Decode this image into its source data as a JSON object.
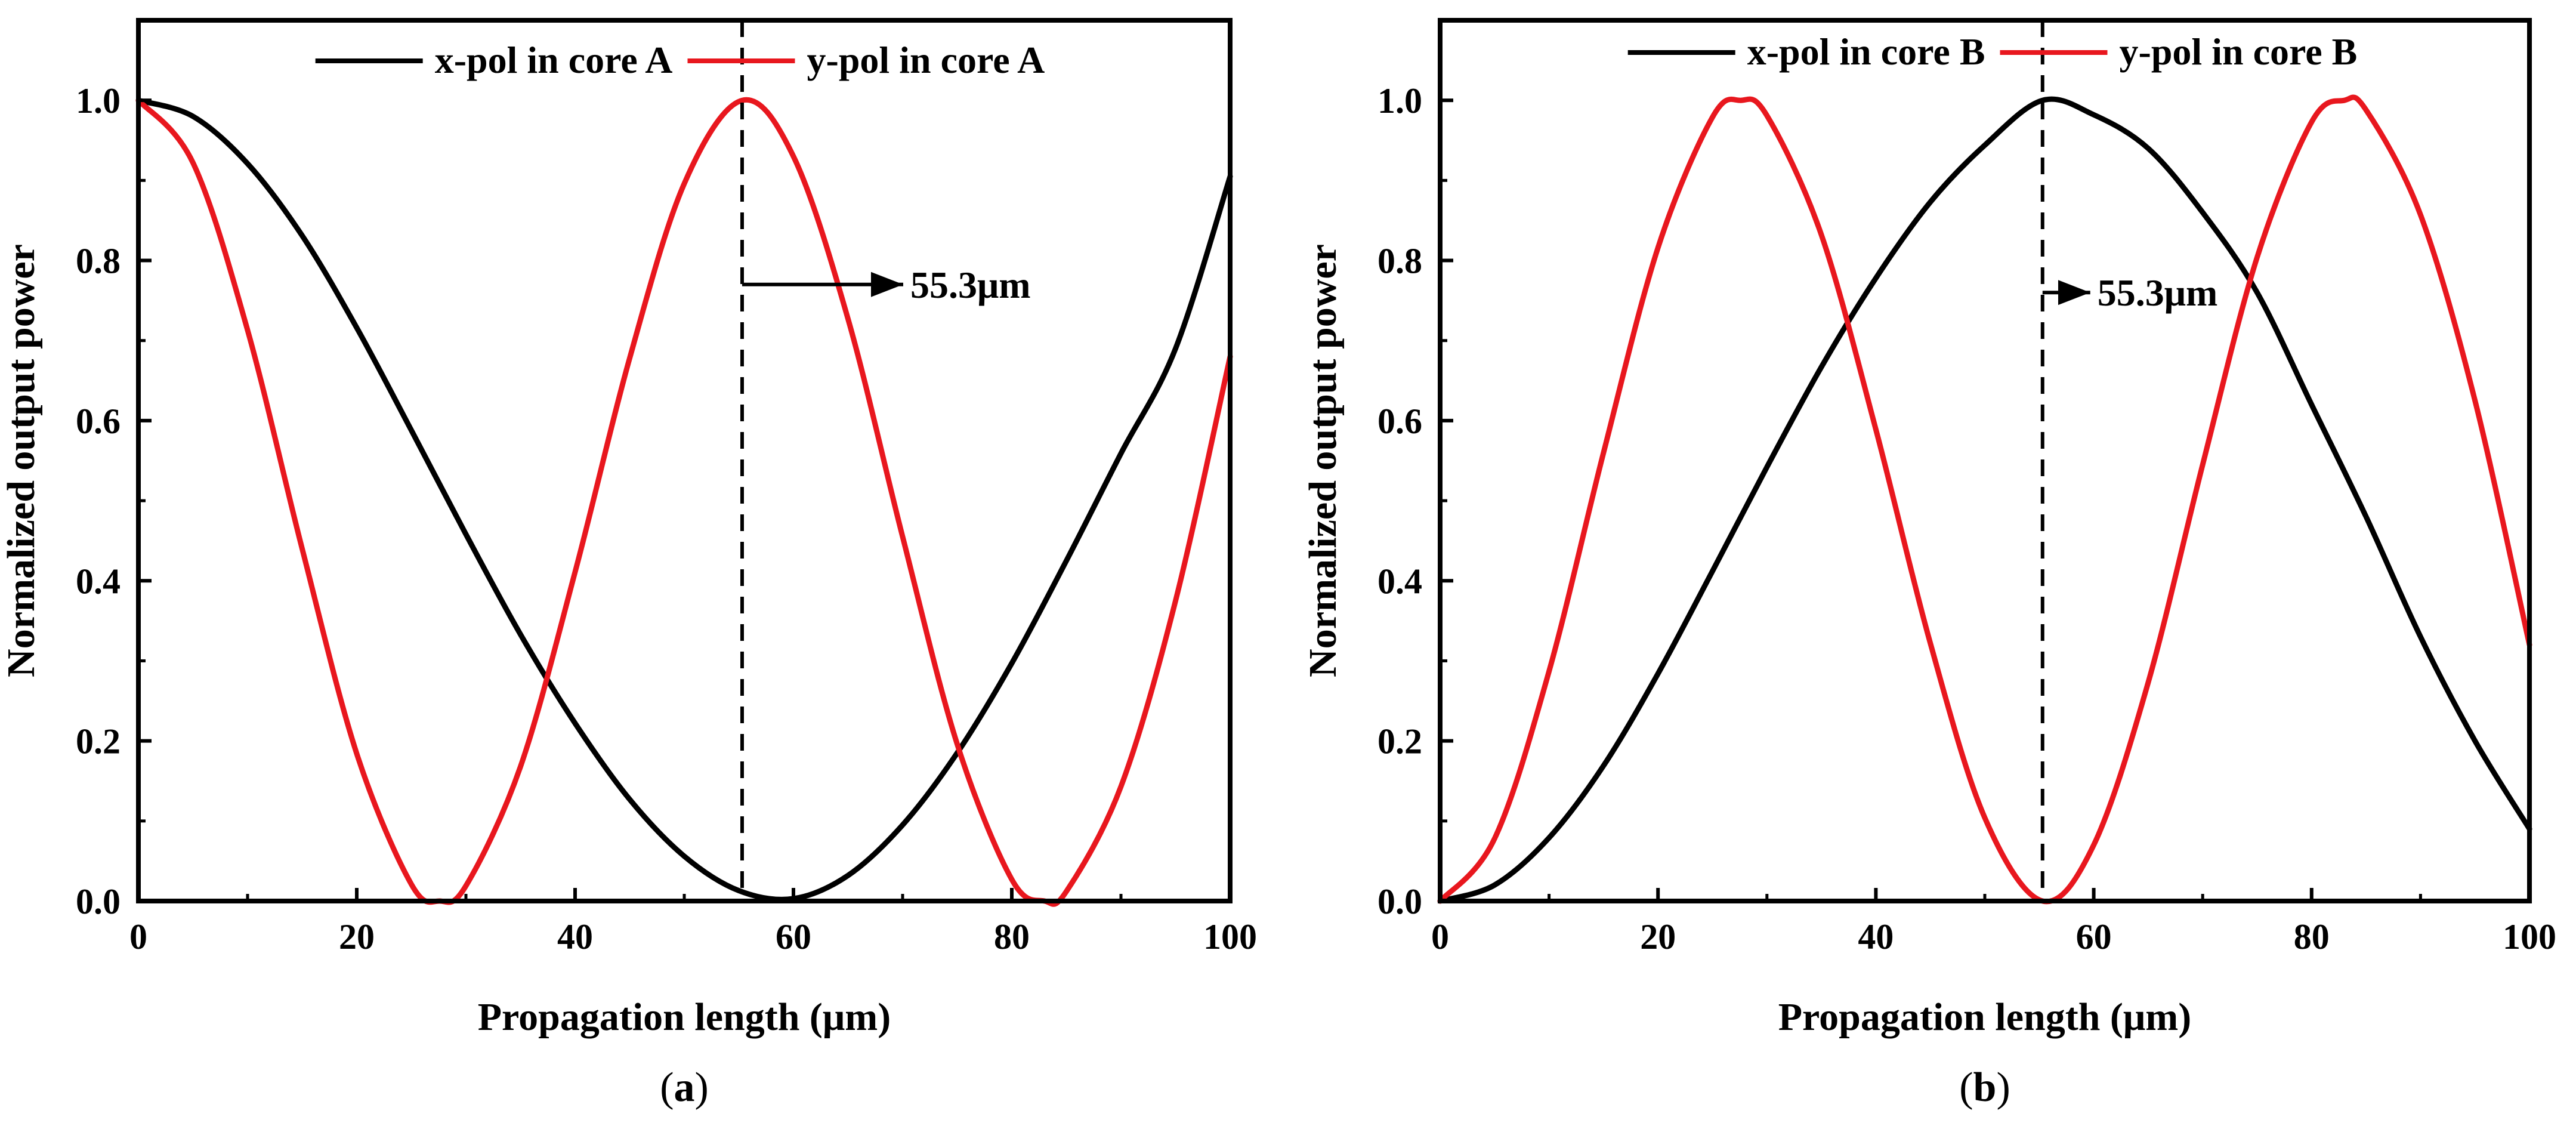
{
  "chart_data": [
    {
      "type": "line",
      "panel_label": "(a)",
      "panel_open": "(",
      "panel_letter": "a",
      "panel_close": ")",
      "xlabel": "Propagation length (μm)",
      "ylabel": "Normalized output power",
      "xlim": [
        0,
        100
      ],
      "ylim": [
        0,
        1.1
      ],
      "xticks": [
        0,
        20,
        40,
        60,
        80,
        100
      ],
      "xtick_labels": [
        "0",
        "20",
        "40",
        "60",
        "80",
        "100"
      ],
      "yticks": [
        0.0,
        0.2,
        0.4,
        0.6,
        0.8,
        1.0
      ],
      "ytick_labels": [
        "0.0",
        "0.2",
        "0.4",
        "0.6",
        "0.8",
        "1.0"
      ],
      "grid": false,
      "legend_position": "top-center",
      "series": [
        {
          "name": "x-pol in core A",
          "color": "#000000",
          "x": [
            0,
            5,
            10,
            15,
            20,
            25,
            30,
            35,
            40,
            45,
            50,
            55,
            60,
            65,
            70,
            75,
            80,
            85,
            90,
            95,
            100
          ],
          "y": [
            1.0,
            0.98,
            0.921,
            0.831,
            0.716,
            0.588,
            0.458,
            0.333,
            0.222,
            0.127,
            0.056,
            0.013,
            0.003,
            0.032,
            0.095,
            0.185,
            0.297,
            0.425,
            0.559,
            0.69,
            0.905
          ]
        },
        {
          "name": "y-pol in core A",
          "color": "#e8171e",
          "x": [
            0,
            5,
            10,
            15,
            20,
            25,
            27.6,
            30,
            35,
            40,
            45,
            50,
            55.3,
            60,
            65,
            70,
            75,
            80,
            83,
            85,
            90,
            95,
            100
          ],
          "y": [
            1.0,
            0.922,
            0.713,
            0.44,
            0.184,
            0.021,
            0.0,
            0.019,
            0.168,
            0.411,
            0.678,
            0.896,
            1.0,
            0.93,
            0.727,
            0.455,
            0.196,
            0.027,
            0.0,
            0.012,
            0.143,
            0.375,
            0.68
          ]
        }
      ],
      "annotations": [
        {
          "type": "vline",
          "x": 55.3,
          "style": "dashed"
        },
        {
          "type": "arrow-label",
          "x": 55.3,
          "y": 0.77,
          "text": "55.3μm"
        }
      ]
    },
    {
      "type": "line",
      "panel_label": "(b)",
      "panel_open": "(",
      "panel_letter": "b",
      "panel_close": ")",
      "xlabel": "Propagation length (μm)",
      "ylabel": "Normalized output power",
      "xlim": [
        0,
        100
      ],
      "ylim": [
        0,
        1.1
      ],
      "xticks": [
        0,
        20,
        40,
        60,
        80,
        100
      ],
      "xtick_labels": [
        "0",
        "20",
        "40",
        "60",
        "80",
        "100"
      ],
      "yticks": [
        0.0,
        0.2,
        0.4,
        0.6,
        0.8,
        1.0
      ],
      "ytick_labels": [
        "0.0",
        "0.2",
        "0.4",
        "0.6",
        "0.8",
        "1.0"
      ],
      "grid": false,
      "legend_position": "top-center",
      "series": [
        {
          "name": "x-pol in core B",
          "color": "#000000",
          "x": [
            0,
            5,
            10,
            15,
            20,
            25,
            30,
            35,
            40,
            45,
            50,
            55.3,
            60,
            65,
            70,
            75,
            80,
            85,
            90,
            95,
            100
          ],
          "y": [
            0.0,
            0.02,
            0.079,
            0.169,
            0.284,
            0.412,
            0.542,
            0.667,
            0.778,
            0.873,
            0.944,
            1.0,
            0.982,
            0.94,
            0.86,
            0.76,
            0.62,
            0.48,
            0.33,
            0.2,
            0.09
          ]
        },
        {
          "name": "y-pol in core B",
          "color": "#e8171e",
          "x": [
            0,
            5,
            10,
            15,
            20,
            25,
            27.6,
            30,
            35,
            40,
            45,
            50,
            55.3,
            60,
            65,
            70,
            75,
            80,
            83,
            85,
            90,
            95,
            100
          ],
          "y": [
            0.0,
            0.078,
            0.287,
            0.56,
            0.816,
            0.979,
            1.0,
            0.981,
            0.832,
            0.589,
            0.322,
            0.104,
            0.0,
            0.07,
            0.273,
            0.545,
            0.804,
            0.973,
            1.0,
            0.988,
            0.857,
            0.625,
            0.32
          ]
        }
      ],
      "annotations": [
        {
          "type": "vline",
          "x": 55.3,
          "style": "dashed"
        },
        {
          "type": "arrow-label",
          "x": 55.3,
          "y": 0.76,
          "text": "55.3μm"
        }
      ]
    }
  ]
}
